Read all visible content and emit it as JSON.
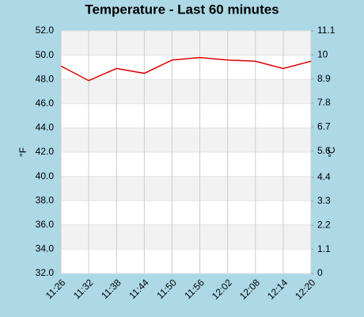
{
  "chart_data": {
    "type": "line",
    "title": "Temperature - Last 60 minutes",
    "y_label": "°F",
    "y2_label": "°C",
    "categories": [
      "11:26",
      "11:32",
      "11:38",
      "11:44",
      "11:50",
      "11:56",
      "12:02",
      "12:08",
      "12:14",
      "12:20"
    ],
    "series": [
      {
        "name": "Temperature",
        "color": "#dd0000",
        "values": [
          49.1,
          47.9,
          48.9,
          48.5,
          49.6,
          49.8,
          49.6,
          49.5,
          48.9,
          49.5
        ]
      }
    ],
    "ylim": [
      32,
      52
    ],
    "yticks": [
      {
        "value": 32,
        "label": "32.0"
      },
      {
        "value": 34,
        "label": "34.0"
      },
      {
        "value": 36,
        "label": "36.0"
      },
      {
        "value": 38,
        "label": "38.0"
      },
      {
        "value": 40,
        "label": "40.0"
      },
      {
        "value": 42,
        "label": "42.0"
      },
      {
        "value": 44,
        "label": "44.0"
      },
      {
        "value": 46,
        "label": "46.0"
      },
      {
        "value": 48,
        "label": "48.0"
      },
      {
        "value": 50,
        "label": "50.0"
      },
      {
        "value": 52,
        "label": "52.0"
      }
    ],
    "y2lim": [
      0,
      11.1
    ],
    "y2ticks": [
      0,
      1.1,
      2.2,
      3.3,
      4.4,
      5.6,
      6.7,
      7.8,
      8.9,
      10,
      11.1
    ],
    "grid": true
  }
}
